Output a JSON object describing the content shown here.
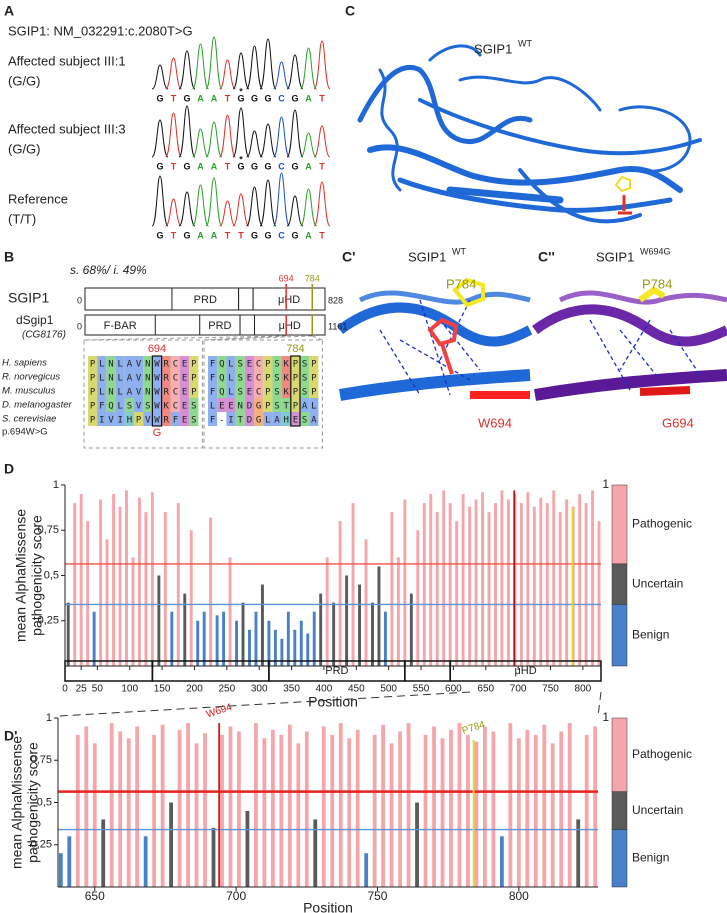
{
  "panel_a": {
    "label": "A",
    "title": "SGIP1: NM_032291:c.2080T>G",
    "samples": [
      {
        "name": "Affected subject III:1",
        "genotype": "(G/G)",
        "sequence": "GTGAATGGGCGAT",
        "marker": "*"
      },
      {
        "name": "Affected subject III:3",
        "genotype": "(G/G)",
        "sequence": "GTGAATGGGCGAT",
        "marker": "*"
      },
      {
        "name": "Reference",
        "genotype": "(T/T)",
        "sequence": "GTGAATTGGCGAT"
      }
    ]
  },
  "panel_b": {
    "label": "B",
    "identity": "s. 68%/ i. 49%",
    "proteins": [
      {
        "name": "SGIP1",
        "start": 0,
        "end": 828,
        "domains": [
          {
            "label": "PRD",
            "start": 300,
            "end": 530
          },
          {
            "start": 530,
            "end": 580
          },
          {
            "label": "μHD",
            "start": 580,
            "end": 828
          }
        ]
      },
      {
        "name": "dSgip1",
        "alias": "(CG8176)",
        "start": 0,
        "end": 1161,
        "domains": [
          {
            "label": "F-BAR",
            "start": 0,
            "end": 340
          },
          {
            "label": "PRD",
            "start": 555,
            "end": 750
          },
          {
            "start": 750,
            "end": 820
          },
          {
            "label": "μHD",
            "start": 820,
            "end": 1161
          }
        ]
      }
    ],
    "sites": [
      {
        "position": 694,
        "color": "#e0302a"
      },
      {
        "position": 784,
        "color": "#9a9a10"
      }
    ],
    "alignment": {
      "species": [
        "H. sapiens",
        "R. norvegicus",
        "M. musculus",
        "D. melanogaster",
        "S. cerevisiae"
      ],
      "mutation": "p.694W>G",
      "substitution": "G",
      "blocks": [
        {
          "rows": [
            "PLNLAVNWRCEP",
            "PLNLAVNWRCEP",
            "PLNLAVNWRCEP",
            "PFQLSVSWKCES",
            "PIVIHPVWRFES"
          ]
        },
        {
          "rows": [
            "FQLSECPSKPSP",
            "FQLSECPSKPSP",
            "FQLSECPSKPSP",
            "LEENDGPSTPAL",
            "F-ITDGLAHESA"
          ]
        }
      ]
    }
  },
  "panel_c": {
    "views": [
      {
        "label": "C",
        "protein": "SGIP1",
        "superscript": "WT"
      },
      {
        "label": "C'",
        "protein": "SGIP1",
        "superscript": "WT",
        "residues": [
          "P784",
          "W694"
        ]
      },
      {
        "label": "C''",
        "protein": "SGIP1",
        "superscript": "W694G",
        "residues": [
          "P784",
          "G694"
        ]
      }
    ]
  },
  "chart_data": [
    {
      "type": "bar",
      "label": "D",
      "y_label": [
        "mean AlphaMissense",
        "pathogenicity score"
      ],
      "x_label": "Position",
      "x": [
        5,
        15,
        25,
        35,
        45,
        55,
        65,
        75,
        85,
        95,
        105,
        115,
        125,
        135,
        145,
        155,
        165,
        175,
        185,
        195,
        205,
        215,
        225,
        235,
        245,
        255,
        265,
        275,
        285,
        295,
        305,
        315,
        325,
        335,
        345,
        355,
        365,
        375,
        385,
        395,
        405,
        415,
        425,
        435,
        445,
        455,
        465,
        475,
        485,
        495,
        505,
        515,
        525,
        535,
        545,
        555,
        565,
        575,
        585,
        595,
        605,
        615,
        625,
        635,
        645,
        655,
        665,
        675,
        685,
        695,
        705,
        715,
        725,
        735,
        745,
        755,
        765,
        775,
        785,
        795,
        805,
        815,
        825
      ],
      "values": [
        0.35,
        0.9,
        0.95,
        0.8,
        0.3,
        0.92,
        0.7,
        0.95,
        0.88,
        0.97,
        0.6,
        0.93,
        0.85,
        0.96,
        0.5,
        0.85,
        0.3,
        0.9,
        0.4,
        0.75,
        0.25,
        0.3,
        0.82,
        0.28,
        0.3,
        0.6,
        0.25,
        0.35,
        0.2,
        0.3,
        0.45,
        0.25,
        0.2,
        0.15,
        0.3,
        0.2,
        0.25,
        0.18,
        0.3,
        0.4,
        0.6,
        0.35,
        0.8,
        0.5,
        0.9,
        0.45,
        0.7,
        0.35,
        0.55,
        0.3,
        0.85,
        0.6,
        0.92,
        0.4,
        0.75,
        0.9,
        0.95,
        0.85,
        0.97,
        0.9,
        0.8,
        0.95,
        0.88,
        0.92,
        0.96,
        0.85,
        0.9,
        0.97,
        0.92,
        0.95,
        0.9,
        0.96,
        0.88,
        0.93,
        0.9,
        0.97,
        0.85,
        0.92,
        0.88,
        0.95,
        0.9,
        0.97,
        0.8
      ],
      "xlim": [
        0,
        828
      ],
      "xticks": [
        0,
        25,
        50,
        100,
        150,
        200,
        250,
        300,
        350,
        400,
        450,
        500,
        550,
        600,
        650,
        700,
        750,
        800
      ],
      "ylim": [
        0,
        1
      ],
      "yticks": [
        {
          "value": 0.25,
          "label": "0,25"
        },
        {
          "value": 0.5,
          "label": "0,5"
        },
        {
          "value": 0.75,
          "label": "0,75"
        },
        1
      ],
      "classes": [
        {
          "name": "Pathogenic",
          "color": "#f4a6ab"
        },
        {
          "name": "Uncertain",
          "color": "#5a5a5a"
        },
        {
          "name": "Benign",
          "color": "#4a80c8"
        }
      ],
      "thresholds": [
        {
          "value": 0.564,
          "color": "#f0504a"
        },
        {
          "value": 0.34,
          "color": "#5b93d6"
        }
      ],
      "highlights": [
        {
          "x": 694,
          "value": 0.97,
          "color": "#b0141a"
        },
        {
          "x": 784,
          "value": 0.87,
          "color": "#e4dc20"
        }
      ],
      "domains": [
        {
          "start": 0,
          "end": 135
        },
        {
          "start": 135,
          "end": 315
        },
        {
          "label": "PRD",
          "start": 315,
          "end": 525
        },
        {
          "start": 525,
          "end": 595
        },
        {
          "label": "μHD",
          "start": 595,
          "end": 828
        }
      ],
      "legend_max": 1
    },
    {
      "type": "bar",
      "label": "D'",
      "y_label": [
        "mean AlphaMissense",
        "pathogenicity score"
      ],
      "x_label": "Position",
      "x": [
        638,
        641,
        644,
        647,
        650,
        653,
        656,
        659,
        662,
        665,
        668,
        671,
        674,
        677,
        680,
        683,
        686,
        689,
        692,
        695,
        698,
        701,
        704,
        707,
        710,
        713,
        716,
        719,
        722,
        725,
        728,
        731,
        734,
        737,
        740,
        743,
        746,
        749,
        752,
        755,
        758,
        761,
        764,
        767,
        770,
        773,
        776,
        779,
        782,
        785,
        788,
        791,
        794,
        797,
        800,
        803,
        806,
        809,
        812,
        815,
        818,
        821,
        824,
        827
      ],
      "values": [
        0.2,
        0.3,
        0.9,
        0.95,
        0.85,
        0.4,
        0.97,
        0.92,
        0.88,
        0.95,
        0.3,
        0.9,
        0.96,
        0.5,
        0.93,
        0.97,
        0.85,
        0.91,
        0.35,
        0.9,
        0.95,
        0.92,
        0.45,
        0.97,
        0.88,
        0.93,
        0.9,
        0.96,
        0.85,
        0.92,
        0.4,
        0.95,
        0.9,
        0.97,
        0.88,
        0.93,
        0.2,
        0.9,
        0.96,
        0.85,
        0.92,
        0.97,
        0.5,
        0.9,
        0.95,
        0.88,
        0.93,
        0.97,
        0.9,
        0.86,
        0.95,
        0.92,
        0.3,
        0.97,
        0.88,
        0.93,
        0.9,
        0.96,
        0.85,
        0.92,
        0.97,
        0.4,
        0.9,
        0.95
      ],
      "xlim": [
        637,
        828
      ],
      "xticks": [
        650,
        700,
        750,
        800
      ],
      "ylim": [
        0,
        1
      ],
      "yticks": [
        {
          "value": 0.25,
          "label": "0,25"
        },
        {
          "value": 0.5,
          "label": "0,5"
        },
        {
          "value": 0.75,
          "label": "0,75"
        },
        1
      ],
      "classes": [
        {
          "name": "Pathogenic",
          "color": "#f4a6ab"
        },
        {
          "name": "Uncertain",
          "color": "#5a5a5a"
        },
        {
          "name": "Benign",
          "color": "#4a80c8"
        }
      ],
      "thresholds": [
        {
          "value": 0.564,
          "color": "#e8221c"
        },
        {
          "value": 0.34,
          "color": "#5b93d6"
        }
      ],
      "highlights": [
        {
          "x": 694,
          "value": 0.97,
          "color": "#d01a1a",
          "label": "W694"
        },
        {
          "x": 784,
          "value": 0.87,
          "color": "#e4dc20",
          "label": "P784"
        }
      ],
      "legend_max": 1
    }
  ]
}
